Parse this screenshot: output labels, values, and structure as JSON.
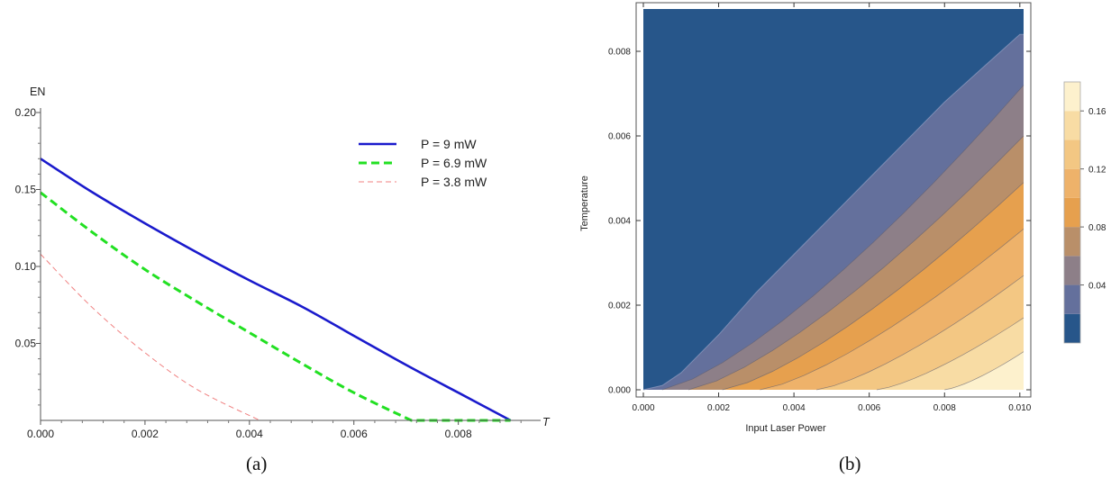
{
  "chart_data": [
    {
      "type": "line",
      "caption": "(a)",
      "xlabel": "T",
      "ylabel": "EN",
      "xlim": [
        0,
        0.0093
      ],
      "ylim": [
        0,
        0.2
      ],
      "x_ticks": [
        "0.000",
        "0.002",
        "0.004",
        "0.006",
        "0.008"
      ],
      "y_ticks": [
        "0.05",
        "0.10",
        "0.15",
        "0.20"
      ],
      "x_tick_values": [
        0,
        0.002,
        0.004,
        0.006,
        0.008
      ],
      "y_tick_values": [
        0.05,
        0.1,
        0.15,
        0.2
      ],
      "legend_position": "top-right",
      "grid": false,
      "series": [
        {
          "name": "P = 9 mW",
          "color": "#1a1acc",
          "style": "solid",
          "x": [
            0,
            0.001,
            0.002,
            0.003,
            0.004,
            0.005,
            0.006,
            0.007,
            0.008,
            0.009
          ],
          "y": [
            0.17,
            0.148,
            0.128,
            0.109,
            0.091,
            0.074,
            0.055,
            0.036,
            0.018,
            0
          ]
        },
        {
          "name": "P = 6.9 mW",
          "color": "#22e022",
          "style": "dashed",
          "x": [
            0,
            0.001,
            0.002,
            0.003,
            0.004,
            0.005,
            0.006,
            0.0071,
            0.009
          ],
          "y": [
            0.148,
            0.122,
            0.098,
            0.077,
            0.057,
            0.037,
            0.018,
            0,
            0
          ]
        },
        {
          "name": "P = 3.8 mW",
          "color": "#f08080",
          "style": "thin-dashed",
          "x": [
            0,
            0.001,
            0.002,
            0.003,
            0.0042,
            0.009
          ],
          "y": [
            0.108,
            0.073,
            0.044,
            0.02,
            0,
            0
          ]
        }
      ]
    },
    {
      "type": "contour",
      "caption": "(b)",
      "xlabel": "Input Laser Power",
      "ylabel": "Temperature",
      "xlim": [
        0,
        0.0101
      ],
      "ylim": [
        0,
        0.009
      ],
      "x_ticks": [
        "0.000",
        "0.002",
        "0.004",
        "0.006",
        "0.008",
        "0.010"
      ],
      "y_ticks": [
        "0.000",
        "0.002",
        "0.004",
        "0.006",
        "0.008"
      ],
      "x_tick_values": [
        0,
        0.002,
        0.004,
        0.006,
        0.008,
        0.01
      ],
      "y_tick_values": [
        0,
        0.002,
        0.004,
        0.006,
        0.008
      ],
      "levels": [
        0.02,
        0.04,
        0.06,
        0.08,
        0.1,
        0.12,
        0.14,
        0.16
      ],
      "level_colors": [
        "#27568a",
        "#64709c",
        "#8d7f88",
        "#b98f69",
        "#e6a04e",
        "#eeb26a",
        "#f3c783",
        "#f8dca4",
        "#fdf1cd"
      ],
      "colorbar": {
        "ticks": [
          "0.04",
          "0.08",
          "0.12",
          "0.16"
        ],
        "tick_values": [
          0.04,
          0.08,
          0.12,
          0.16
        ],
        "range": [
          0,
          0.18
        ],
        "position": "right"
      },
      "boundary_zero_line": {
        "x": [
          0,
          0.0005,
          0.001,
          0.002,
          0.003,
          0.004,
          0.005,
          0.006,
          0.007,
          0.008,
          0.009,
          0.01
        ],
        "y": [
          0,
          0.0001,
          0.0004,
          0.0013,
          0.0023,
          0.0032,
          0.0041,
          0.005,
          0.0059,
          0.0068,
          0.0076,
          0.0084
        ]
      },
      "level_intercepts_x": [
        0.0005,
        0.0012,
        0.0021,
        0.0031,
        0.0046,
        0.0062,
        0.008
      ],
      "level_intercepts_right": [
        0.0084,
        0.0072,
        0.006,
        0.0049,
        0.0038,
        0.0027,
        0.0017,
        0.0009
      ]
    }
  ]
}
